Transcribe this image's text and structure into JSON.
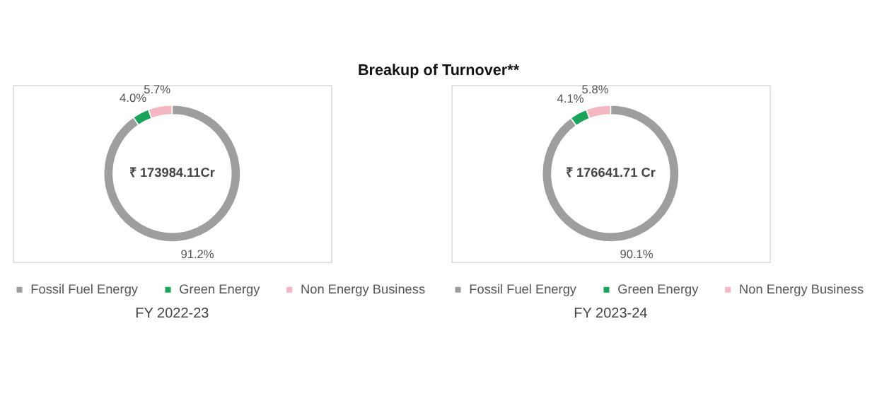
{
  "chart_data": [
    {
      "type": "donut",
      "title": "Breakup of Turnover**",
      "categories": [
        "Fossil Fuel Energy",
        "Green Energy",
        "Non Energy Business"
      ],
      "values": [
        91.2,
        4.0,
        5.7
      ],
      "colors": [
        "#9e9e9e",
        "#1aa35a",
        "#f4b6c0"
      ],
      "value_labels": [
        "91.2%",
        "4.0%",
        "5.7%"
      ],
      "annotations": [
        "₹ 173984.11Cr",
        "FY 2022-23"
      ],
      "legend": "bottom"
    },
    {
      "type": "donut",
      "categories": [
        "Fossil Fuel Energy",
        "Green Energy",
        "Non Energy Business"
      ],
      "values": [
        90.1,
        4.1,
        5.8
      ],
      "colors": [
        "#9e9e9e",
        "#1aa35a",
        "#f4b6c0"
      ],
      "value_labels": [
        "90.1%",
        "4.1%",
        "5.8%"
      ],
      "annotations": [
        "₹ 176641.71 Cr",
        "FY 2023-24"
      ],
      "legend": "bottom"
    }
  ]
}
